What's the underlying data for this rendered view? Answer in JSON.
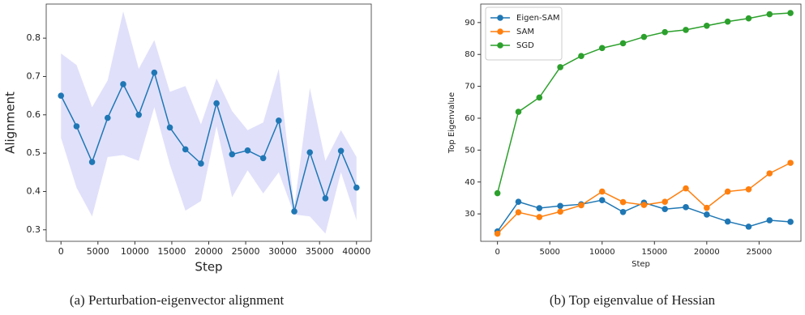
{
  "chart_data": [
    {
      "type": "line",
      "caption": "(a) Perturbation-eigenvector alignment",
      "xlabel": "Step",
      "ylabel": "Alignment",
      "x": [
        0,
        2105,
        4211,
        6316,
        8421,
        10526,
        12632,
        14737,
        16842,
        18947,
        21053,
        23158,
        25263,
        27368,
        29474,
        31579,
        33684,
        35789,
        37895,
        40000
      ],
      "series": [
        {
          "color": "#1f77b4",
          "band_color": "#e0e0fb",
          "values": [
            0.65,
            0.57,
            0.477,
            0.592,
            0.68,
            0.6,
            0.71,
            0.567,
            0.51,
            0.473,
            0.63,
            0.497,
            0.507,
            0.487,
            0.585,
            0.348,
            0.502,
            0.382,
            0.506,
            0.41
          ],
          "upper": [
            0.76,
            0.73,
            0.62,
            0.69,
            0.87,
            0.72,
            0.795,
            0.66,
            0.675,
            0.575,
            0.695,
            0.61,
            0.56,
            0.58,
            0.72,
            0.36,
            0.67,
            0.48,
            0.56,
            0.49
          ],
          "lower": [
            0.54,
            0.41,
            0.335,
            0.49,
            0.495,
            0.48,
            0.62,
            0.47,
            0.35,
            0.375,
            0.57,
            0.385,
            0.455,
            0.395,
            0.45,
            0.34,
            0.335,
            0.29,
            0.45,
            0.325
          ]
        }
      ],
      "xlim": [
        -2000,
        42000
      ],
      "xticks": [
        0,
        5000,
        10000,
        15000,
        20000,
        25000,
        30000,
        35000,
        40000
      ],
      "ylim": [
        0.27,
        0.889
      ],
      "yticks": [
        0.3,
        0.4,
        0.5,
        0.6,
        0.7,
        0.8
      ]
    },
    {
      "type": "line",
      "caption": "(b) Top eigenvalue of Hessian",
      "xlabel": "Step",
      "ylabel": "Top Eigenvalue",
      "legend": "upper left",
      "x": [
        0,
        2000,
        4000,
        6000,
        8000,
        10000,
        12000,
        14000,
        16000,
        18000,
        20000,
        22000,
        24000,
        26000,
        28000
      ],
      "series": [
        {
          "name": "Eigen-SAM",
          "color": "#1f77b4",
          "values": [
            24.5,
            33.8,
            31.8,
            32.5,
            33,
            34.3,
            30.6,
            33.5,
            31.5,
            32.1,
            29.8,
            27.6,
            26,
            28,
            27.5
          ]
        },
        {
          "name": "SAM",
          "color": "#ff7f0e",
          "values": [
            23.8,
            30.5,
            29,
            30.7,
            32.7,
            37,
            33.7,
            32.8,
            33.8,
            38,
            31.9,
            37,
            37.7,
            42.7,
            46
          ]
        },
        {
          "name": "SGD",
          "color": "#2ca02c",
          "values": [
            36.5,
            62,
            66.5,
            76,
            79.5,
            82,
            83.5,
            85.5,
            87,
            87.7,
            89,
            90.3,
            91.3,
            92.6,
            93
          ]
        }
      ],
      "xlim": [
        -1600,
        29000
      ],
      "xticks": [
        0,
        5000,
        10000,
        15000,
        20000,
        25000
      ],
      "ylim": [
        21.4,
        95.8
      ],
      "yticks": [
        30,
        40,
        50,
        60,
        70,
        80,
        90
      ]
    }
  ]
}
